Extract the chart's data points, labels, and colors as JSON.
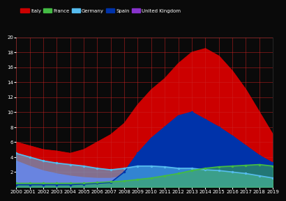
{
  "years": [
    2000,
    2001,
    2002,
    2003,
    2004,
    2005,
    2006,
    2007,
    2008,
    2009,
    2010,
    2011,
    2012,
    2013,
    2014,
    2015,
    2016,
    2017,
    2018,
    2019
  ],
  "italy": [
    6.0,
    5.5,
    5.0,
    4.8,
    4.5,
    5.0,
    6.0,
    7.0,
    8.5,
    11.0,
    13.0,
    14.5,
    16.5,
    18.0,
    18.5,
    17.5,
    15.5,
    13.0,
    10.0,
    7.0
  ],
  "france": [
    0.5,
    0.5,
    0.5,
    0.5,
    0.5,
    0.5,
    0.6,
    0.7,
    0.8,
    1.0,
    1.2,
    1.5,
    1.8,
    2.2,
    2.5,
    2.7,
    2.8,
    2.9,
    3.0,
    2.8
  ],
  "germany": [
    4.5,
    4.0,
    3.5,
    3.2,
    3.0,
    2.8,
    2.5,
    2.3,
    2.5,
    2.8,
    2.8,
    2.7,
    2.5,
    2.5,
    2.3,
    2.2,
    2.0,
    1.8,
    1.5,
    1.2
  ],
  "spain": [
    0.3,
    0.3,
    0.3,
    0.3,
    0.3,
    0.4,
    0.5,
    0.6,
    2.0,
    4.5,
    6.5,
    8.0,
    9.5,
    10.0,
    9.0,
    8.0,
    6.8,
    5.5,
    4.2,
    3.2
  ],
  "uk": [
    3.5,
    2.8,
    2.2,
    1.8,
    1.5,
    1.3,
    1.2,
    1.2,
    1.5,
    1.8,
    1.8,
    1.7,
    1.6,
    1.5,
    1.3,
    1.2,
    1.1,
    1.0,
    0.9,
    0.8
  ],
  "colors": {
    "italy": "#cc0000",
    "france": "#44bb44",
    "germany": "#55bbee",
    "spain": "#0033aa",
    "uk": "#8833cc"
  },
  "background": "#0a0a0a",
  "grid_color": "#cc2222",
  "ylim": [
    0,
    20
  ],
  "yticks": [
    2,
    4,
    6,
    8,
    10,
    12,
    14,
    16,
    18,
    20
  ],
  "xticks": [
    2000,
    2001,
    2002,
    2003,
    2004,
    2005,
    2006,
    2007,
    2008,
    2009,
    2010,
    2011,
    2012,
    2013,
    2014,
    2015,
    2016,
    2017,
    2018,
    2019
  ],
  "legend_labels": [
    "Italy",
    "France",
    "Germany",
    "Spain",
    "United Kingdom"
  ]
}
